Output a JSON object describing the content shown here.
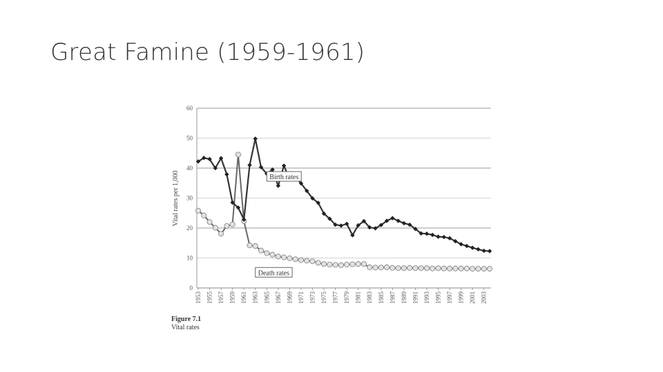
{
  "slide": {
    "title": "Great Famine (1959-1961)"
  },
  "figure": {
    "number": "Figure 7.1",
    "description": "Vital rates"
  },
  "chart_data": {
    "type": "line",
    "ylabel": "Vital rates per 1,000",
    "xlabel": "",
    "ylim": [
      0,
      60
    ],
    "yticks": [
      0,
      10,
      20,
      30,
      40,
      50,
      60
    ],
    "grid": true,
    "x": [
      1953,
      1954,
      1955,
      1956,
      1957,
      1958,
      1959,
      1960,
      1961,
      1962,
      1963,
      1964,
      1965,
      1966,
      1967,
      1968,
      1969,
      1970,
      1971,
      1972,
      1973,
      1974,
      1975,
      1976,
      1977,
      1978,
      1979,
      1980,
      1981,
      1982,
      1983,
      1984,
      1985,
      1986,
      1987,
      1988,
      1989,
      1990,
      1991,
      1992,
      1993,
      1994,
      1995,
      1996,
      1997,
      1998,
      1999,
      2000,
      2001,
      2002,
      2003,
      2004
    ],
    "xtick_labels": [
      "1953",
      "1955",
      "1957",
      "1959",
      "1961",
      "1963",
      "1965",
      "1967",
      "1969",
      "1971",
      "1973",
      "1975",
      "1977",
      "1979",
      "1981",
      "1983",
      "1985",
      "1987",
      "1989",
      "1991",
      "1993",
      "1995",
      "1997",
      "1999",
      "2001",
      "2003"
    ],
    "series": [
      {
        "name": "Birth rates",
        "color": "#333333",
        "marker": "filled-diamond",
        "values": [
          42.2,
          43.4,
          43.0,
          40.0,
          43.3,
          37.9,
          28.5,
          26.8,
          22.8,
          41.0,
          49.8,
          40.3,
          38.1,
          39.5,
          34.1,
          40.8,
          36.2,
          37.0,
          34.9,
          32.4,
          29.9,
          28.4,
          24.8,
          23.1,
          21.1,
          20.8,
          21.4,
          17.6,
          20.9,
          22.3,
          20.2,
          19.9,
          21.0,
          22.4,
          23.3,
          22.4,
          21.6,
          21.1,
          19.7,
          18.2,
          18.1,
          17.7,
          17.1,
          17.0,
          16.6,
          15.6,
          14.6,
          14.0,
          13.4,
          12.9,
          12.4,
          12.3
        ]
      },
      {
        "name": "Death rates",
        "color": "#666666",
        "marker": "open-circle",
        "values": [
          25.8,
          24.2,
          22.0,
          20.1,
          18.1,
          20.7,
          21.2,
          44.5,
          22.3,
          14.2,
          14.0,
          12.5,
          11.6,
          11.1,
          10.5,
          10.2,
          9.9,
          9.6,
          9.3,
          9.1,
          8.9,
          8.4,
          8.0,
          7.8,
          7.7,
          7.6,
          7.8,
          7.9,
          8.0,
          8.0,
          6.9,
          6.8,
          6.8,
          6.9,
          6.7,
          6.6,
          6.6,
          6.7,
          6.6,
          6.6,
          6.6,
          6.5,
          6.6,
          6.5,
          6.5,
          6.5,
          6.5,
          6.5,
          6.4,
          6.4,
          6.4,
          6.4
        ]
      }
    ],
    "annotations": [
      {
        "text": "Birth rates",
        "year": 1965,
        "value": 37
      },
      {
        "text": "Death rates",
        "year": 1963,
        "value": 5
      }
    ]
  }
}
